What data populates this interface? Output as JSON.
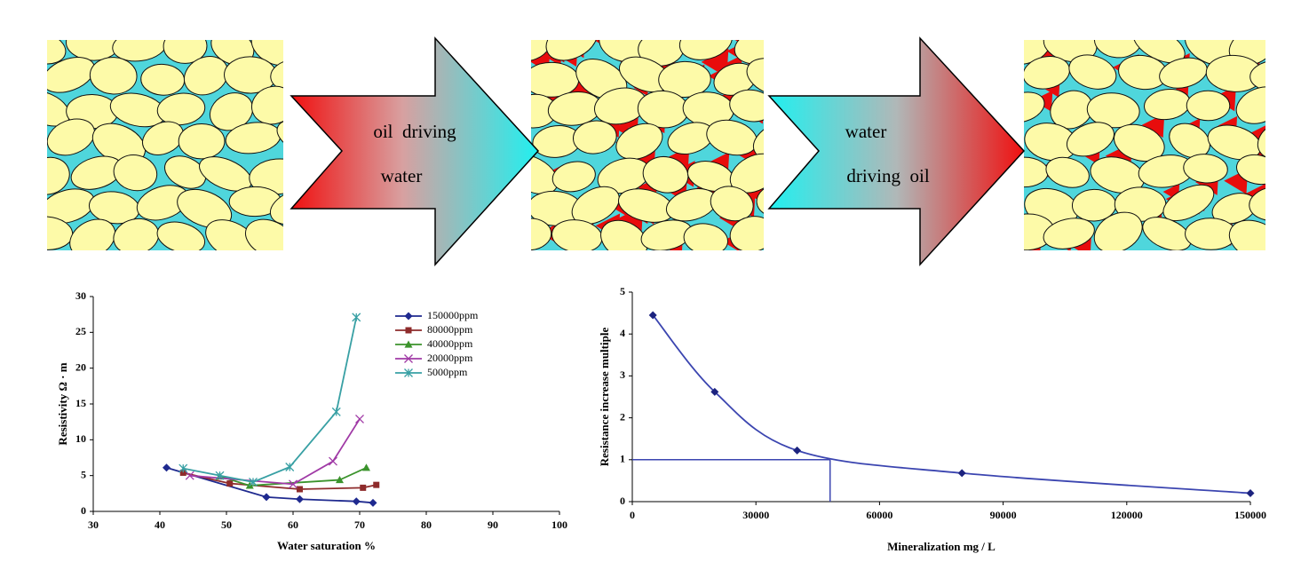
{
  "diagram": {
    "arrows": [
      {
        "label_lines": [
          "oil  driving",
          "water"
        ]
      },
      {
        "label_lines": [
          "water",
          "driving  oil"
        ]
      }
    ]
  },
  "chart_data": [
    {
      "type": "line",
      "xlabel": "Water saturation %",
      "ylabel": "Resistivity Ω · m",
      "xlim": [
        30,
        100
      ],
      "xticks": [
        30,
        40,
        50,
        60,
        70,
        80,
        90,
        100
      ],
      "ylim": [
        0,
        30
      ],
      "yticks": [
        0,
        5,
        10,
        15,
        20,
        25,
        30
      ],
      "legend": "upper right",
      "series": [
        {
          "name": "150000ppm",
          "color": "#1f2a8f",
          "marker": "diamond",
          "x": [
            41,
            56,
            61,
            69.5,
            72
          ],
          "values": [
            6.1,
            2.0,
            1.7,
            1.4,
            1.2
          ]
        },
        {
          "name": "80000ppm",
          "color": "#8e2b2b",
          "marker": "square",
          "x": [
            43.5,
            50.5,
            61,
            70.5,
            72.5
          ],
          "values": [
            5.4,
            3.9,
            3.1,
            3.3,
            3.7
          ]
        },
        {
          "name": "40000ppm",
          "color": "#3b932c",
          "marker": "triangle",
          "x": [
            49,
            53.5,
            67,
            71
          ],
          "values": [
            4.9,
            3.6,
            4.4,
            6.1
          ]
        },
        {
          "name": "20000ppm",
          "color": "#a03aa6",
          "marker": "x",
          "x": [
            44.5,
            60,
            66,
            70
          ],
          "values": [
            5.0,
            3.8,
            7.0,
            12.9
          ]
        },
        {
          "name": "5000ppm",
          "color": "#38a0a4",
          "marker": "star",
          "x": [
            43.5,
            49,
            54,
            59.5,
            66.5,
            69.5
          ],
          "values": [
            6.0,
            5.0,
            4.1,
            6.2,
            13.9,
            27.1
          ]
        }
      ]
    },
    {
      "type": "line",
      "xlabel": "Mineralization mg / L",
      "ylabel": "Resistance increase multiple",
      "xlim": [
        0,
        150000
      ],
      "xticks": [
        0,
        30000,
        60000,
        90000,
        120000,
        150000
      ],
      "ylim": [
        0,
        5
      ],
      "yticks": [
        0,
        1,
        2,
        3,
        4,
        5
      ],
      "smooth": true,
      "reference_x": 48000,
      "reference_y": 1,
      "reference_color": "#3b45b0",
      "series": [
        {
          "color": "#3b45b0",
          "marker_color": "#1c237f",
          "marker": "diamond",
          "x": [
            5000,
            20000,
            40000,
            80000,
            150000
          ],
          "values": [
            4.45,
            2.62,
            1.22,
            0.68,
            0.2
          ]
        }
      ]
    }
  ]
}
